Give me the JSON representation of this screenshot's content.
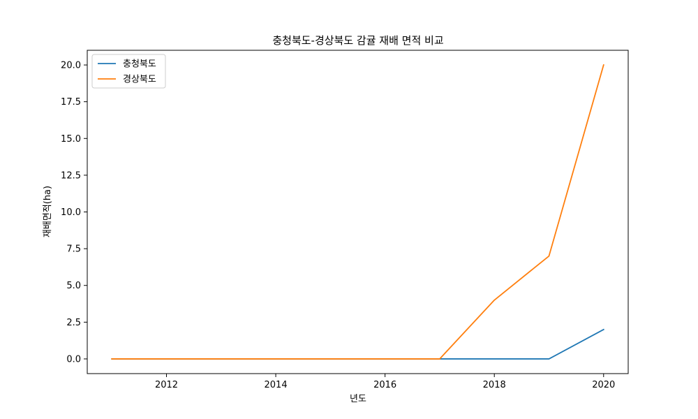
{
  "chart_data": {
    "type": "line",
    "title": "충청북도-경상북도 감귤 재배 면적 비교",
    "xlabel": "년도",
    "ylabel": "재배면적(ha)",
    "x": [
      2011,
      2012,
      2013,
      2014,
      2015,
      2016,
      2017,
      2018,
      2019,
      2020
    ],
    "xlim": [
      2010.55,
      2020.45
    ],
    "ylim": [
      -1.0,
      21.0
    ],
    "xticks": [
      2012,
      2014,
      2016,
      2018,
      2020
    ],
    "yticks": [
      0.0,
      2.5,
      5.0,
      7.5,
      10.0,
      12.5,
      15.0,
      17.5,
      20.0
    ],
    "grid": false,
    "legend_position": "top-left",
    "series": [
      {
        "name": "충청북도",
        "color": "#1f77b4",
        "values": [
          0,
          0,
          0,
          0,
          0,
          0,
          0,
          0,
          0,
          2
        ]
      },
      {
        "name": "경상북도",
        "color": "#ff7f0e",
        "values": [
          0,
          0,
          0,
          0,
          0,
          0,
          0,
          4,
          7,
          20
        ]
      }
    ]
  }
}
